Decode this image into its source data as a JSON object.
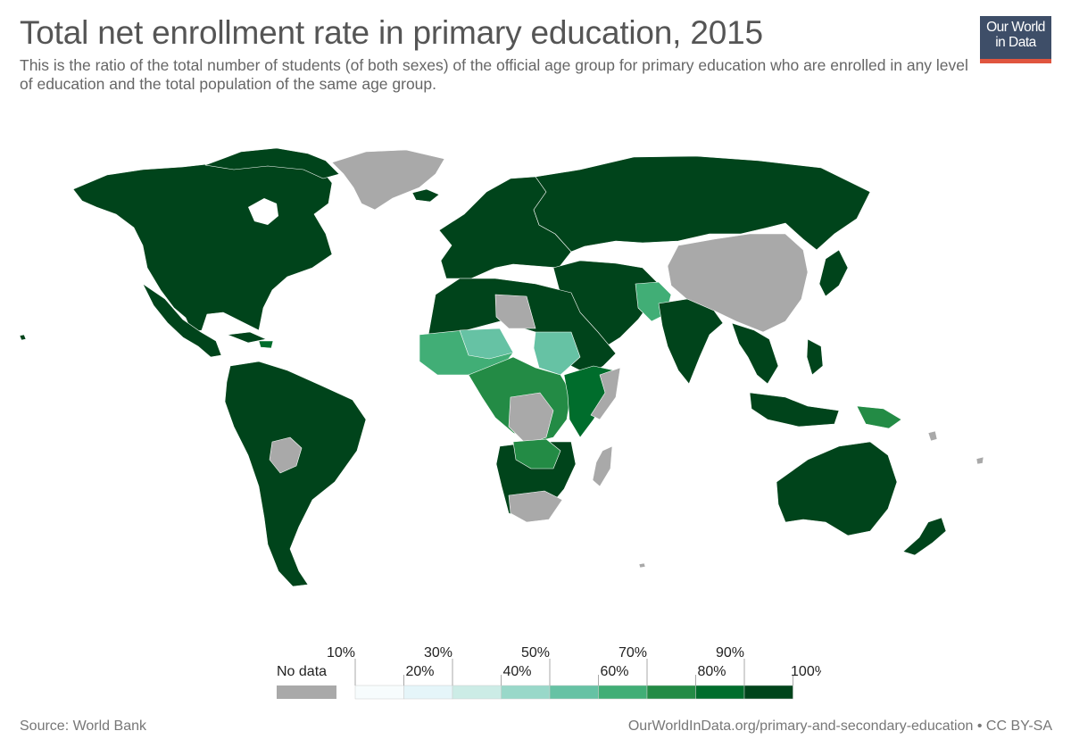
{
  "header": {
    "title": "Total net enrollment rate in primary education, 2015",
    "subtitle": "This is the ratio of the total number of students (of both sexes) of the official age group for primary education who are enrolled in any level of education and the total population of the same age group.",
    "logo_line1": "Our World",
    "logo_line2": "in Data",
    "logo_bg": "#3e4e68",
    "logo_accent": "#e0553f"
  },
  "legend": {
    "no_data_label": "No data",
    "no_data_color": "#a9a9a9",
    "ticks": [
      "10%",
      "20%",
      "30%",
      "40%",
      "50%",
      "60%",
      "70%",
      "80%",
      "90%",
      "100%"
    ],
    "bins": [
      {
        "from": 0,
        "to": 10,
        "color": "#f7fcfd"
      },
      {
        "from": 10,
        "to": 20,
        "color": "#e5f5f9"
      },
      {
        "from": 20,
        "to": 30,
        "color": "#ccece6"
      },
      {
        "from": 30,
        "to": 40,
        "color": "#99d8c9"
      },
      {
        "from": 40,
        "to": 50,
        "color": "#66c2a4"
      },
      {
        "from": 50,
        "to": 60,
        "color": "#41ae76"
      },
      {
        "from": 60,
        "to": 70,
        "color": "#238b45"
      },
      {
        "from": 70,
        "to": 80,
        "color": "#006d2c"
      },
      {
        "from": 80,
        "to": 100,
        "color": "#00441b"
      }
    ]
  },
  "map": {
    "dark": "#00441b",
    "mid": "#006d2c",
    "medium": "#238b45",
    "light": "#41ae76",
    "lighter": "#66c2a4",
    "no_data": "#a9a9a9"
  },
  "footer": {
    "source": "Source: World Bank",
    "link": "OurWorldInData.org/primary-and-secondary-education • CC BY-SA"
  }
}
